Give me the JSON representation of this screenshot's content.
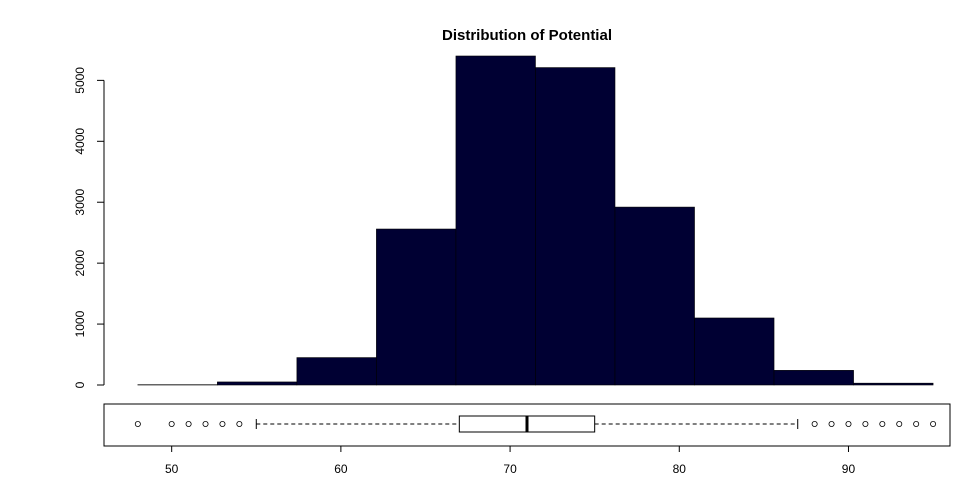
{
  "chart_data": [
    {
      "type": "bar",
      "subtype": "histogram",
      "title": "Distribution of Potential",
      "xlim": [
        46,
        96
      ],
      "ylim": [
        0,
        5400
      ],
      "y_ticks": [
        0,
        1000,
        2000,
        3000,
        4000,
        5000
      ],
      "bins": [
        {
          "x0": 48.0,
          "x1": 52.7,
          "count": 5
        },
        {
          "x0": 52.7,
          "x1": 57.4,
          "count": 50
        },
        {
          "x0": 57.4,
          "x1": 62.1,
          "count": 450
        },
        {
          "x0": 62.1,
          "x1": 66.8,
          "count": 2560
        },
        {
          "x0": 66.8,
          "x1": 71.5,
          "count": 5400
        },
        {
          "x0": 71.5,
          "x1": 76.2,
          "count": 5210
        },
        {
          "x0": 76.2,
          "x1": 80.9,
          "count": 2920
        },
        {
          "x0": 80.9,
          "x1": 85.6,
          "count": 1100
        },
        {
          "x0": 85.6,
          "x1": 90.3,
          "count": 240
        },
        {
          "x0": 90.3,
          "x1": 95.0,
          "count": 30
        }
      ],
      "bar_color": "#000033",
      "grid": false
    },
    {
      "type": "boxplot",
      "xlim": [
        46,
        96
      ],
      "x_ticks": [
        50,
        60,
        70,
        80,
        90
      ],
      "q1": 67,
      "median": 71,
      "q3": 75,
      "whisker_low": 55,
      "whisker_high": 87,
      "outliers": [
        48,
        50,
        51,
        52,
        53,
        54,
        88,
        89,
        90,
        91,
        92,
        93,
        94,
        95
      ]
    }
  ]
}
